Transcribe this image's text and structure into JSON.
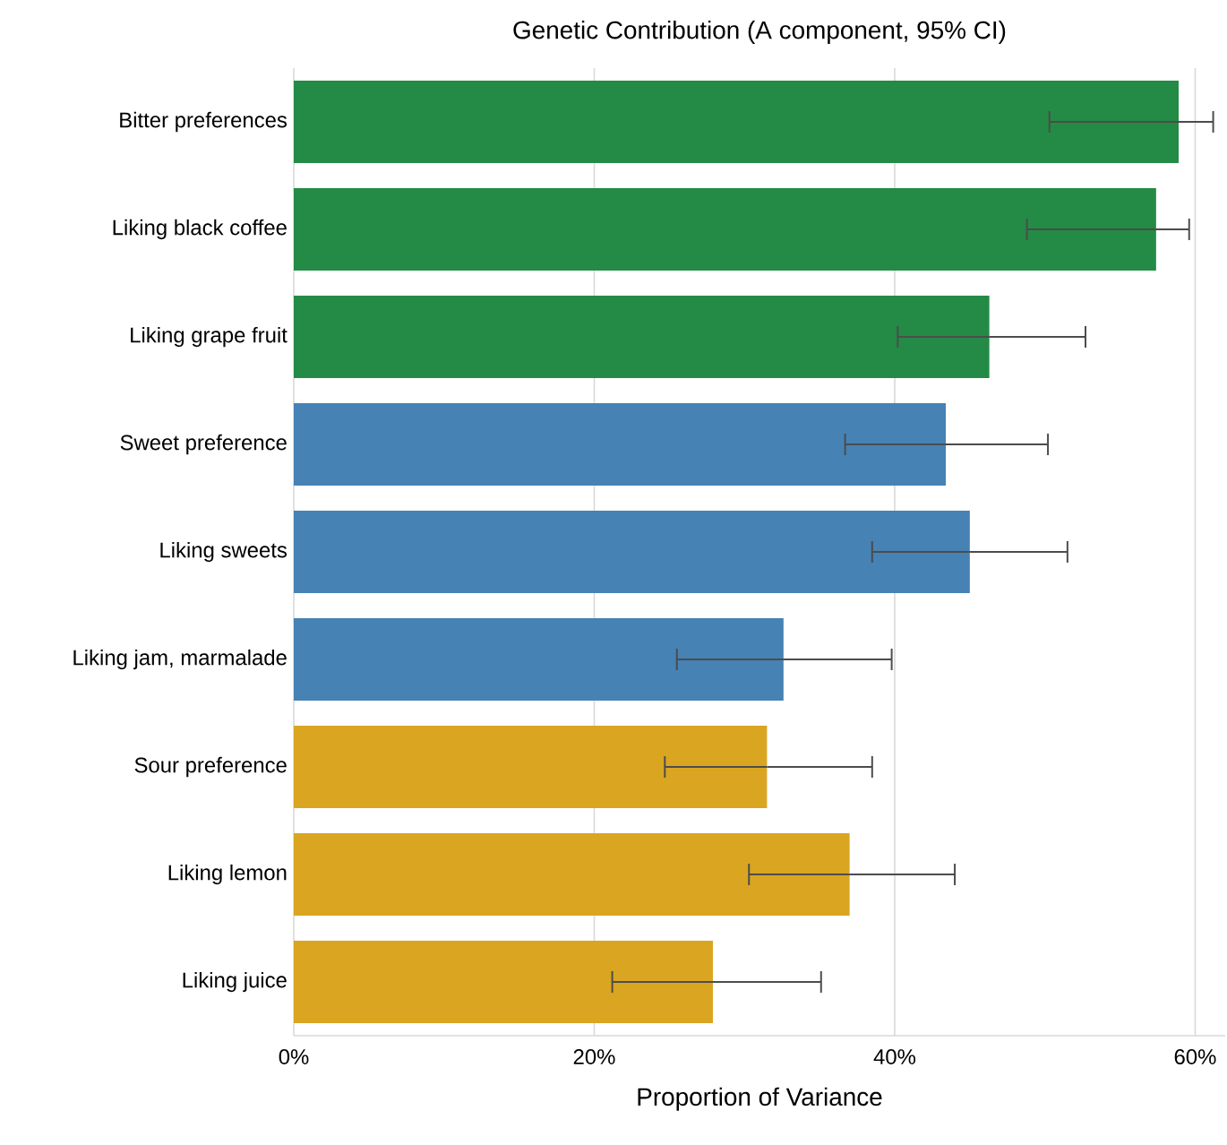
{
  "chart_data": {
    "type": "bar",
    "orientation": "horizontal",
    "title": "Genetic Contribution (A component, 95% CI)",
    "xlabel": "Proportion of Variance",
    "categories": [
      "Bitter preferences",
      "Liking black coffee",
      "Liking grape fruit",
      "Sweet preference",
      "Liking sweets",
      "Liking jam, marmalade",
      "Sour preference",
      "Liking lemon",
      "Liking juice"
    ],
    "values": [
      58.9,
      57.4,
      46.3,
      43.4,
      45.0,
      32.6,
      31.5,
      37.0,
      27.9
    ],
    "errors": [
      [
        50.3,
        61.2
      ],
      [
        48.8,
        59.6
      ],
      [
        40.2,
        52.7
      ],
      [
        36.7,
        50.2
      ],
      [
        38.5,
        51.5
      ],
      [
        25.5,
        39.8
      ],
      [
        24.7,
        38.5
      ],
      [
        30.3,
        44.0
      ],
      [
        21.2,
        35.1
      ]
    ],
    "colors": [
      "#238b45",
      "#238b45",
      "#238b45",
      "#4682b4",
      "#4682b4",
      "#4682b4",
      "#daa520",
      "#daa520",
      "#daa520"
    ],
    "xlim": [
      0,
      62
    ],
    "xticks": [
      {
        "value": 0,
        "label": "0%"
      },
      {
        "value": 20,
        "label": "20%"
      },
      {
        "value": 40,
        "label": "40%"
      },
      {
        "value": 60,
        "label": "60%"
      }
    ],
    "grid": "x"
  }
}
